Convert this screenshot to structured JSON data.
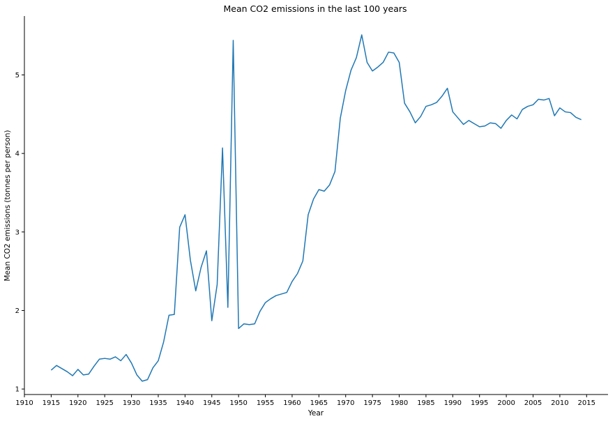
{
  "chart_data": {
    "type": "line",
    "title": "Mean CO2 emissions in the last 100 years",
    "xlabel": "Year",
    "ylabel": "Mean CO2 emissions (tonnes per person)",
    "xlim": [
      1910,
      2019
    ],
    "ylim": [
      0.93,
      5.75
    ],
    "xticks": [
      1910,
      1915,
      1920,
      1925,
      1930,
      1935,
      1940,
      1945,
      1950,
      1955,
      1960,
      1965,
      1970,
      1975,
      1980,
      1985,
      1990,
      1995,
      2000,
      2005,
      2010,
      2015
    ],
    "yticks": [
      1,
      2,
      3,
      4,
      5
    ],
    "grid": false,
    "color": "#1f77b4",
    "series": [
      {
        "x": [
          1915,
          1916,
          1917,
          1918,
          1919,
          1920,
          1921,
          1922,
          1923,
          1924,
          1925,
          1926,
          1927,
          1928,
          1929,
          1930,
          1931,
          1932,
          1933,
          1934,
          1935,
          1936,
          1937,
          1938,
          1939,
          1940,
          1941,
          1942,
          1943,
          1944,
          1945,
          1946,
          1947,
          1948,
          1949,
          1950,
          1951,
          1952,
          1953,
          1954,
          1955,
          1956,
          1957,
          1958,
          1959,
          1960,
          1961,
          1962,
          1963,
          1964,
          1965,
          1966,
          1967,
          1968,
          1969,
          1970,
          1971,
          1972,
          1973,
          1974,
          1975,
          1976,
          1977,
          1978,
          1979,
          1980,
          1981,
          1982,
          1983,
          1984,
          1985,
          1986,
          1987,
          1988,
          1989,
          1990,
          1991,
          1992,
          1993,
          1994,
          1995,
          1996,
          1997,
          1998,
          1999,
          2000,
          2001,
          2002,
          2003,
          2004,
          2005,
          2006,
          2007,
          2008,
          2009,
          2010,
          2011,
          2012,
          2013,
          2014
        ],
        "y": [
          1.24,
          1.3,
          1.26,
          1.22,
          1.17,
          1.25,
          1.18,
          1.19,
          1.29,
          1.38,
          1.39,
          1.38,
          1.41,
          1.36,
          1.44,
          1.33,
          1.18,
          1.1,
          1.12,
          1.27,
          1.36,
          1.6,
          1.94,
          1.95,
          3.06,
          3.22,
          2.64,
          2.25,
          2.55,
          2.76,
          1.87,
          2.33,
          4.07,
          2.04,
          5.44,
          1.77,
          1.83,
          1.82,
          1.83,
          1.99,
          2.1,
          2.15,
          2.19,
          2.21,
          2.23,
          2.37,
          2.47,
          2.63,
          3.22,
          3.42,
          3.54,
          3.52,
          3.6,
          3.77,
          4.45,
          4.8,
          5.06,
          5.22,
          5.51,
          5.16,
          5.05,
          5.1,
          5.16,
          5.29,
          5.28,
          5.16,
          4.64,
          4.53,
          4.39,
          4.47,
          4.6,
          4.62,
          4.65,
          4.73,
          4.83,
          4.53,
          4.45,
          4.37,
          4.42,
          4.38,
          4.34,
          4.35,
          4.39,
          4.38,
          4.32,
          4.42,
          4.49,
          4.44,
          4.56,
          4.6,
          4.62,
          4.69,
          4.68,
          4.7,
          4.48,
          4.58,
          4.53,
          4.52,
          4.46,
          4.43
        ]
      }
    ]
  }
}
